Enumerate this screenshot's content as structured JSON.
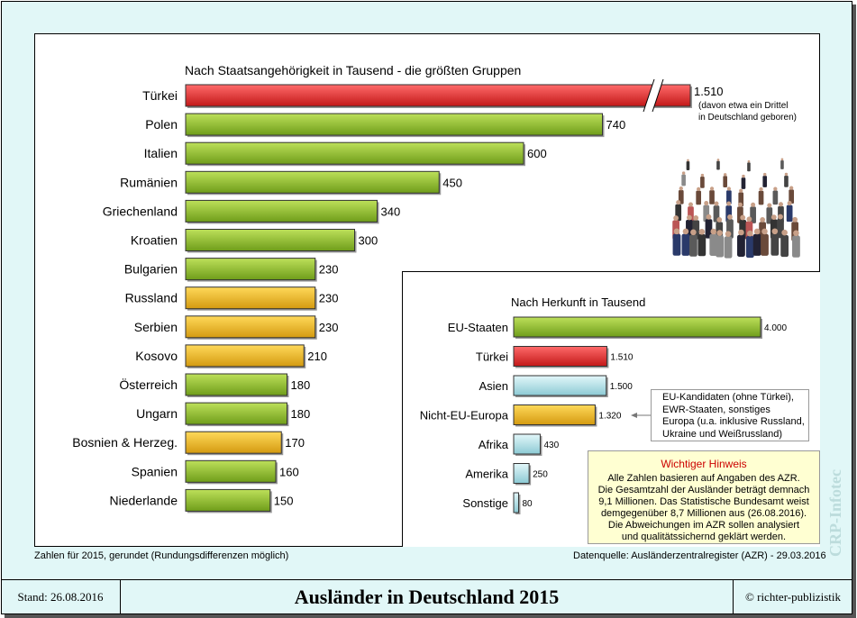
{
  "title": "Ausländer in Deutschland 2015",
  "stand": "Stand: 26.08.2016",
  "copyright": "© richter-publizistik",
  "watermark": "CRP-Infotec",
  "footnote_left": "Zahlen für 2015, gerundet (Rundungsdifferenzen möglich)",
  "footnote_right": "Datenquelle: Ausländerzentralregister (AZR) - 29.03.2016",
  "colors": {
    "green": "#99cc33",
    "red": "#ee3333",
    "yellow": "#f0c030",
    "lightblue": "#bfe8ee",
    "frame": "#e1f7f7"
  },
  "chart_data": [
    {
      "type": "bar",
      "orientation": "horizontal",
      "title": "Nach Staatsangehörigkeit in Tausend - die größten Gruppen",
      "categories": [
        "Türkei",
        "Polen",
        "Italien",
        "Rumänien",
        "Griechenland",
        "Kroatien",
        "Bulgarien",
        "Russland",
        "Serbien",
        "Kosovo",
        "Österreich",
        "Ungarn",
        "Bosnien & Herzeg.",
        "Spanien",
        "Niederlande"
      ],
      "values": [
        1510,
        740,
        600,
        450,
        340,
        300,
        230,
        230,
        230,
        210,
        180,
        180,
        170,
        160,
        150
      ],
      "labels": [
        "1.510",
        "740",
        "600",
        "450",
        "340",
        "300",
        "230",
        "230",
        "230",
        "210",
        "180",
        "180",
        "170",
        "160",
        "150"
      ],
      "colors": [
        "red",
        "green",
        "green",
        "green",
        "green",
        "green",
        "green",
        "yellow",
        "yellow",
        "yellow",
        "green",
        "green",
        "yellow",
        "green",
        "green"
      ],
      "axis_break": true,
      "annotation": [
        "(davon etwa ein Drittel",
        "in Deutschland geboren)"
      ]
    },
    {
      "type": "bar",
      "orientation": "horizontal",
      "title": "Nach Herkunft in Tausend",
      "categories": [
        "EU-Staaten",
        "Türkei",
        "Asien",
        "Nicht-EU-Europa",
        "Afrika",
        "Amerika",
        "Sonstige"
      ],
      "values": [
        4000,
        1510,
        1500,
        1320,
        430,
        250,
        80
      ],
      "labels": [
        "4.000",
        "1.510",
        "1.500",
        "1.320",
        "430",
        "250",
        "80"
      ],
      "colors": [
        "green",
        "red",
        "lightblue",
        "yellow",
        "lightblue",
        "lightblue",
        "lightblue"
      ]
    }
  ],
  "eu_note": [
    "EU-Kandidaten (ohne Türkei),",
    "EWR-Staaten, sonstiges",
    "Europa (u.a. inklusive Russland,",
    "Ukraine und Weißrussland)"
  ],
  "hint": {
    "heading": "Wichtiger Hinweis",
    "lines": [
      "Alle Zahlen basieren auf Angaben des AZR.",
      "Die Gesamtzahl der Ausländer beträgt demnach",
      "9,1 Millionen. Das Statistische Bundesamt weist",
      "demgegenüber 8,7 Millionen aus (26.08.2016).",
      "Die Abweichungen im AZR sollen analysiert",
      "und qualitätssichernd geklärt werden."
    ]
  }
}
